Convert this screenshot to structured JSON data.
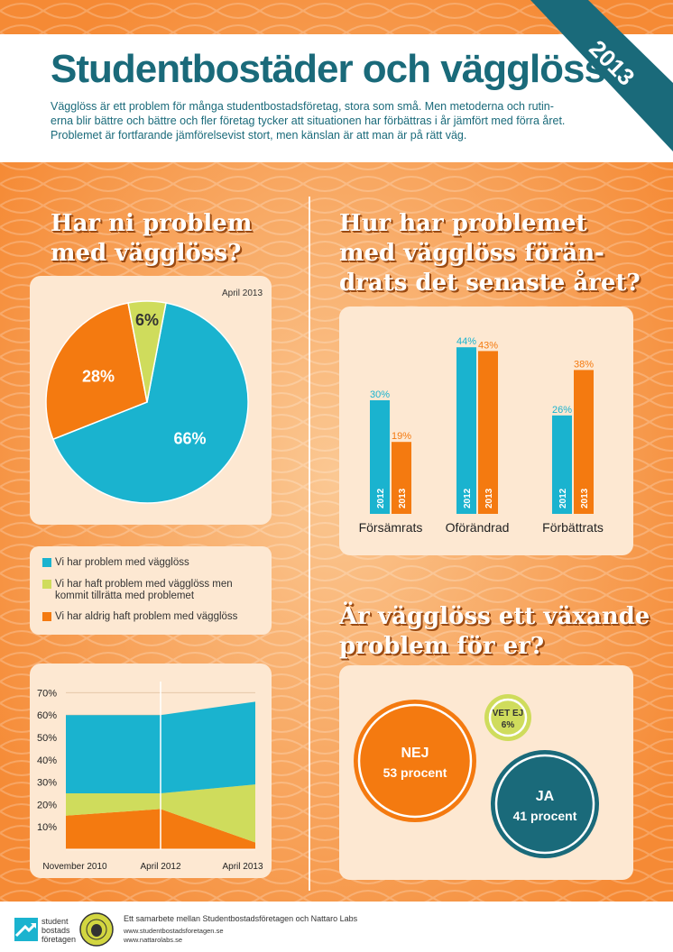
{
  "colors": {
    "teal": "#1ab3cf",
    "orange": "#f47a10",
    "yellowgreen": "#cfdc5c",
    "dark_teal": "#1a6a7a",
    "panel": "#fde8d2"
  },
  "header": {
    "title": "Studentbostäder och vägglöss",
    "year_ribbon": "2013",
    "intro": [
      "Vägglöss är ett problem för många studentbostadsföretag, stora som små. Men metoderna och rutin-",
      "erna blir bättre och bättre och fler företag tycker att situationen har förbättras i år jämfört med förra året.",
      "Problemet är fortfarande jämförelsevist stort, men känslan är att man är på rätt väg."
    ]
  },
  "section1": {
    "heading_line1": "Har ni problem",
    "heading_line2": "med vägglöss?",
    "date_tag": "April 2013"
  },
  "section2": {
    "heading_line1": "Hur har problemet",
    "heading_line2": "med vägglöss förän-",
    "heading_line3": "drats det senaste året?"
  },
  "section3": {
    "heading_line1": "Är vägglöss ett växande",
    "heading_line2": "problem för er?"
  },
  "legend": [
    {
      "label": "Vi har problem med vägglöss",
      "color": "#1ab3cf"
    },
    {
      "label": "Vi har haft problem med vägglöss men kommit tillrätta med problemet",
      "color": "#cfdc5c"
    },
    {
      "label": "Vi har aldrig haft problem med vägglöss",
      "color": "#f47a10"
    }
  ],
  "footer": {
    "credit": "Ett samarbete mellan Studentbostadsföretagen och Nattaro Labs",
    "url1": "www.studentbostadsforetagen.se",
    "url2": "www.nattarolabs.se",
    "logo_line1": "student",
    "logo_line2": "bostads",
    "logo_line3": "företagen"
  },
  "chart_data": [
    {
      "type": "pie",
      "title": "",
      "labels": [
        "Vi har problem med vägglöss",
        "Vi har aldrig haft problem med vägglöss",
        "Vi har haft problem med vägglöss men kommit tillrätta med problemet"
      ],
      "values": [
        66,
        28,
        6
      ],
      "value_labels": [
        "66%",
        "28%",
        "6%"
      ],
      "colors": [
        "#1ab3cf",
        "#f47a10",
        "#cfdc5c"
      ]
    },
    {
      "type": "bar",
      "categories": [
        "Försämrats",
        "Oförändrad",
        "Förbättrats"
      ],
      "series": [
        {
          "name": "2012",
          "values": [
            30,
            44,
            26
          ],
          "labels": [
            "30%",
            "44%",
            "26%"
          ],
          "color": "#1ab3cf"
        },
        {
          "name": "2013",
          "values": [
            19,
            43,
            38
          ],
          "labels": [
            "19%",
            "43%",
            "38%"
          ],
          "color": "#f47a10"
        }
      ],
      "ylim": [
        0,
        50
      ]
    },
    {
      "type": "area",
      "x": [
        "November 2010",
        "April 2012",
        "April 2013"
      ],
      "series": [
        {
          "color": "#f47a10",
          "values": [
            15,
            18,
            3
          ]
        },
        {
          "color": "#cfdc5c",
          "values": [
            10,
            7,
            26
          ]
        },
        {
          "color": "#1ab3cf",
          "values": [
            35,
            35,
            37
          ]
        }
      ],
      "y_ticks": [
        "10%",
        "20%",
        "30%",
        "40%",
        "50%",
        "60%",
        "70%"
      ],
      "ylim": [
        0,
        75
      ],
      "grid": true
    },
    {
      "type": "bubble",
      "items": [
        {
          "label": "NEJ",
          "sublabel": "53 procent",
          "value": 53,
          "color": "#f47a10"
        },
        {
          "label": "JA",
          "sublabel": "41 procent",
          "value": 41,
          "color": "#1a6a7a"
        },
        {
          "label": "VET EJ",
          "sublabel": "6%",
          "value": 6,
          "color": "#cfdc5c"
        }
      ]
    }
  ]
}
